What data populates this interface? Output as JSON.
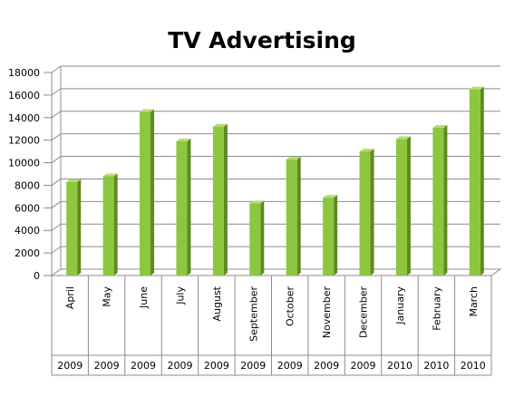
{
  "chart_data": {
    "type": "bar",
    "title": "TV Advertising",
    "xlabel": "",
    "ylabel": "",
    "ylim": [
      0,
      18000
    ],
    "yticks": [
      0,
      2000,
      4000,
      6000,
      8000,
      10000,
      12000,
      14000,
      16000,
      18000
    ],
    "categories": [
      "April",
      "May",
      "June",
      "July",
      "August",
      "September",
      "October",
      "November",
      "December",
      "January",
      "February",
      "March"
    ],
    "years": [
      "2009",
      "2009",
      "2009",
      "2009",
      "2009",
      "2009",
      "2009",
      "2009",
      "2009",
      "2010",
      "2010",
      "2010"
    ],
    "values": [
      8300,
      8800,
      14500,
      11900,
      13200,
      6400,
      10300,
      6900,
      11000,
      12100,
      13100,
      16500
    ],
    "grid": true,
    "legend": "none",
    "colors": {
      "bar_front": "#8DC63F",
      "bar_side": "#5E8A1E",
      "bar_top": "#B6DE6E",
      "grid": "#8C8C8C",
      "wall": "#FFFFFF"
    }
  }
}
